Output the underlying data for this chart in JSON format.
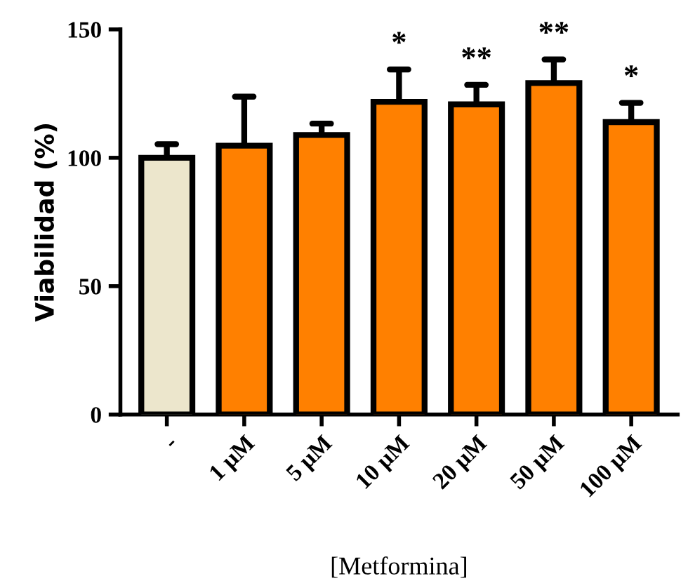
{
  "chart_data": {
    "type": "bar",
    "xlabel": "[Metformina]",
    "ylabel": "Viabilidad (%)",
    "categories": [
      "-",
      "1 µM",
      "5 µM",
      "10 µM",
      "20 µM",
      "50 µM",
      "100 µM"
    ],
    "values": [
      100,
      104.7,
      108.9,
      121.8,
      120.8,
      129.1,
      113.9
    ],
    "colors": [
      "#ece6cc",
      "#ff8000",
      "#ff8000",
      "#ff8000",
      "#ff8000",
      "#ff8000",
      "#ff8000"
    ],
    "errors": [
      [
        100,
        105.3
      ],
      [
        104.7,
        123.8
      ],
      [
        108.9,
        113.3
      ],
      [
        121.8,
        134.4
      ],
      [
        120.8,
        128.4
      ],
      [
        129.1,
        138.3
      ],
      [
        113.9,
        121.4
      ]
    ],
    "ylim": [
      0,
      150
    ],
    "yticks": [
      0,
      50,
      100,
      150
    ],
    "grid": false,
    "legend": false,
    "annotations": [
      "*",
      "**",
      "**",
      "*"
    ]
  }
}
